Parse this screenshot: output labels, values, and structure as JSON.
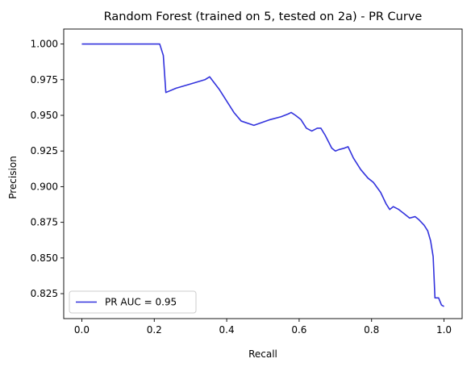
{
  "chart_data": {
    "type": "line",
    "title": "Random Forest (trained on 5, tested on 2a) -  PR Curve",
    "xlabel": "Recall",
    "ylabel": "Precision",
    "xlim": [
      -0.05,
      1.05
    ],
    "ylim": [
      0.8075,
      1.0105
    ],
    "x_ticks": [
      0.0,
      0.2,
      0.4,
      0.6,
      0.8,
      1.0
    ],
    "x_tick_labels": [
      "0.0",
      "0.2",
      "0.4",
      "0.6",
      "0.8",
      "1.0"
    ],
    "y_ticks": [
      0.825,
      0.85,
      0.875,
      0.9,
      0.925,
      0.95,
      0.975,
      1.0
    ],
    "y_tick_labels": [
      "0.825",
      "0.850",
      "0.875",
      "0.900",
      "0.925",
      "0.950",
      "0.975",
      "1.000"
    ],
    "grid": false,
    "legend_position": "lower-left",
    "series": [
      {
        "name": "PR AUC = 0.95",
        "color": "#3333dd",
        "x": [
          0.0,
          0.05,
          0.1,
          0.15,
          0.2,
          0.215,
          0.225,
          0.232,
          0.26,
          0.3,
          0.34,
          0.353,
          0.38,
          0.4,
          0.42,
          0.44,
          0.475,
          0.52,
          0.55,
          0.57,
          0.578,
          0.59,
          0.605,
          0.62,
          0.635,
          0.65,
          0.66,
          0.672,
          0.69,
          0.7,
          0.71,
          0.725,
          0.735,
          0.75,
          0.77,
          0.79,
          0.805,
          0.825,
          0.84,
          0.85,
          0.86,
          0.875,
          0.89,
          0.905,
          0.92,
          0.93,
          0.945,
          0.955,
          0.963,
          0.97,
          0.975,
          0.985,
          0.993,
          1.0
        ],
        "y": [
          1.0,
          1.0,
          1.0,
          1.0,
          1.0,
          1.0,
          0.992,
          0.966,
          0.969,
          0.972,
          0.975,
          0.977,
          0.968,
          0.96,
          0.952,
          0.946,
          0.943,
          0.947,
          0.949,
          0.951,
          0.952,
          0.95,
          0.947,
          0.941,
          0.939,
          0.941,
          0.941,
          0.936,
          0.927,
          0.925,
          0.926,
          0.927,
          0.928,
          0.92,
          0.912,
          0.906,
          0.903,
          0.896,
          0.888,
          0.884,
          0.886,
          0.884,
          0.881,
          0.878,
          0.879,
          0.877,
          0.873,
          0.869,
          0.862,
          0.851,
          0.822,
          0.822,
          0.817,
          0.816
        ]
      }
    ]
  }
}
